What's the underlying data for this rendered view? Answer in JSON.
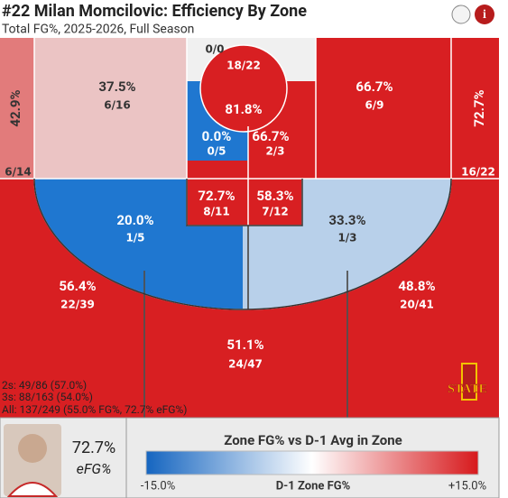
{
  "header": {
    "title": "#22 Milan Momcilovic: Efficiency By Zone",
    "subtitle": "Total FG%, 2025-2026, Full Season"
  },
  "zones": [
    {
      "pct": "42.9%",
      "shots": "6/14"
    },
    {
      "pct": "37.5%",
      "shots": "6/16"
    },
    {
      "pct": "81.8%",
      "shots": "18/22"
    },
    {
      "pct": "66.7%",
      "shots": "6/9"
    },
    {
      "pct": "72.7%",
      "shots": "16/22"
    },
    {
      "pct": "0.0%",
      "shots": "0/5"
    },
    {
      "pct": "66.7%",
      "shots": "2/3"
    },
    {
      "pct": "72.7%",
      "shots": "8/11"
    },
    {
      "pct": "58.3%",
      "shots": "7/12"
    },
    {
      "pct": "20.0%",
      "shots": "1/5"
    },
    {
      "pct": "33.3%",
      "shots": "1/3"
    },
    {
      "pct": "56.4%",
      "shots": "22/39"
    },
    {
      "pct": "51.1%",
      "shots": "24/47"
    },
    {
      "pct": "48.8%",
      "shots": "20/41"
    }
  ],
  "top_zone": "0/0",
  "summary": [
    "2s: 49/86 (57.0%)",
    "3s: 88/163 (54.0%)",
    "All: 137/249 (55.0% FG%, 72.7% eFG%)"
  ],
  "logo": "STATE",
  "player": {
    "efg_value": "72.7%",
    "efg_label": "eFG%"
  },
  "legend": {
    "title": "Zone FG% vs D-1 Avg in Zone",
    "min": "-15.0%",
    "label": "D-1 Zone FG%",
    "max": "+15.0%"
  }
}
